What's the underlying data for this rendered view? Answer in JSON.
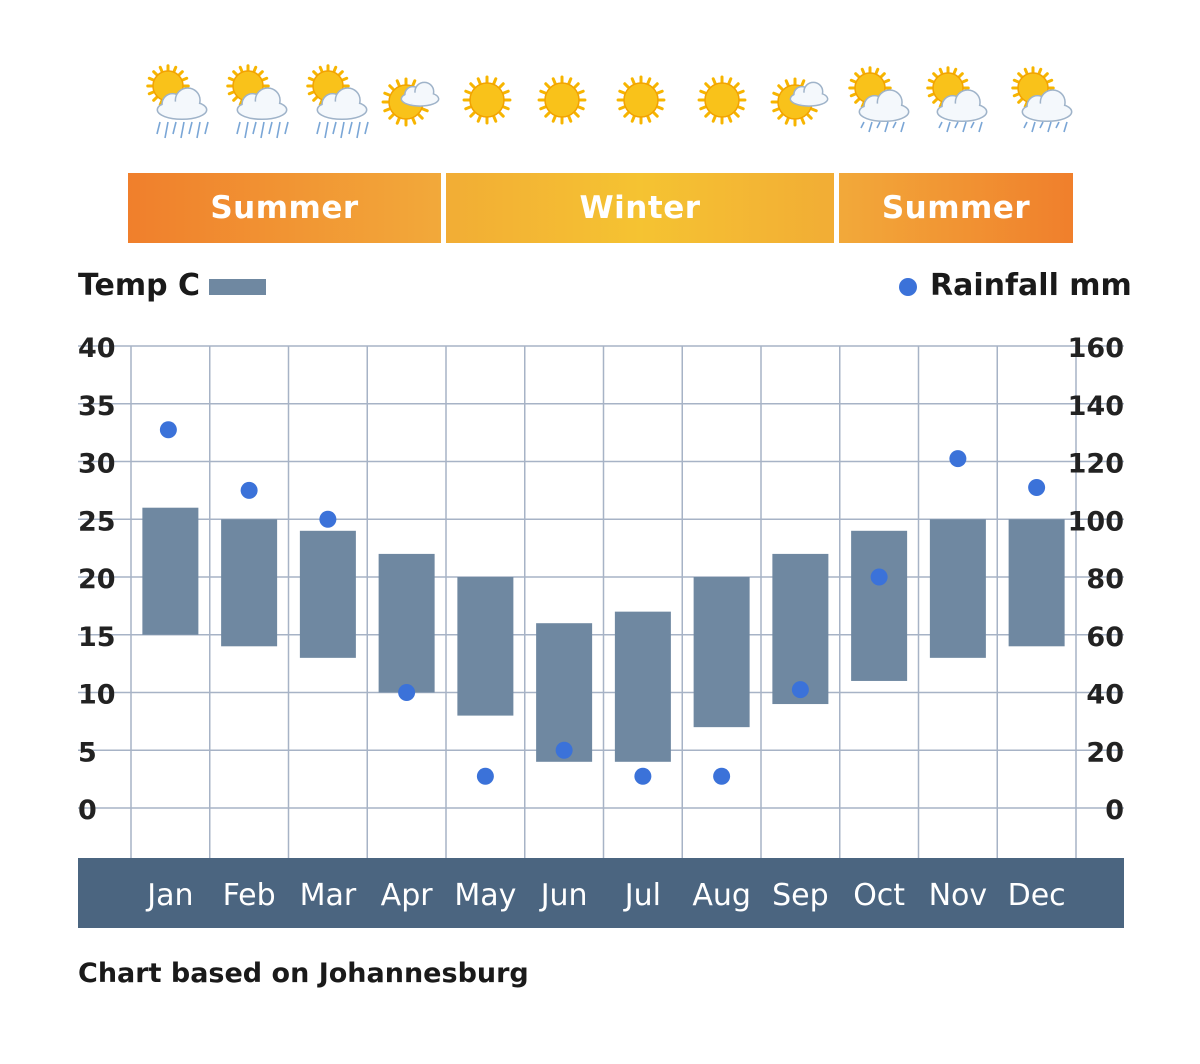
{
  "weather_icons": [
    "sun-cloud-rain-icon",
    "sun-cloud-rain-icon",
    "sun-cloud-rain-icon",
    "sun-cloud-icon",
    "sun-icon",
    "sun-icon",
    "sun-icon",
    "sun-icon",
    "sun-cloud-icon",
    "sun-cloud-drizzle-icon",
    "sun-cloud-drizzle-icon",
    "sun-cloud-drizzle-icon"
  ],
  "seasons": [
    {
      "label": "Summer",
      "months": [
        "Jan",
        "Feb",
        "Mar",
        "Apr"
      ]
    },
    {
      "label": "Winter",
      "months": [
        "May",
        "Jun",
        "Jul",
        "Aug",
        "Sep"
      ]
    },
    {
      "label": "Summer",
      "months": [
        "Oct",
        "Nov",
        "Dec"
      ]
    }
  ],
  "legend": {
    "temp_label": "Temp C",
    "rain_label": "Rainfall mm"
  },
  "footnote": "Chart based on Johannesburg",
  "colors": {
    "bar": "#6f88a1",
    "dot": "#3b72d9",
    "axis_band": "#4b6580",
    "grid": "#a7b3c6",
    "season_orange": "#f07f2c",
    "season_yellow": "#f5c332"
  },
  "chart_data": {
    "type": "bar",
    "categories": [
      "Jan",
      "Feb",
      "Mar",
      "Apr",
      "May",
      "Jun",
      "Jul",
      "Aug",
      "Sep",
      "Oct",
      "Nov",
      "Dec"
    ],
    "series": [
      {
        "name": "Temp C",
        "type": "floating-bar",
        "low": [
          15,
          14,
          13,
          10,
          8,
          4,
          4,
          7,
          9,
          11,
          13,
          14
        ],
        "high": [
          26,
          25,
          24,
          22,
          20,
          16,
          17,
          20,
          22,
          24,
          25,
          25
        ]
      },
      {
        "name": "Rainfall mm",
        "type": "scatter",
        "values": [
          131,
          110,
          100,
          40,
          11,
          20,
          11,
          11,
          41,
          80,
          121,
          111
        ]
      }
    ],
    "y_left": {
      "ticks": [
        "0",
        "5",
        "10",
        "15",
        "20",
        "25",
        "30",
        "35",
        "40"
      ],
      "ylim": [
        0,
        40
      ]
    },
    "y_right": {
      "ticks": [
        "0",
        "20",
        "40",
        "60",
        "80",
        "100",
        "120",
        "140",
        "160"
      ],
      "ylim": [
        0,
        160
      ]
    },
    "grid": true,
    "legend": "top"
  }
}
